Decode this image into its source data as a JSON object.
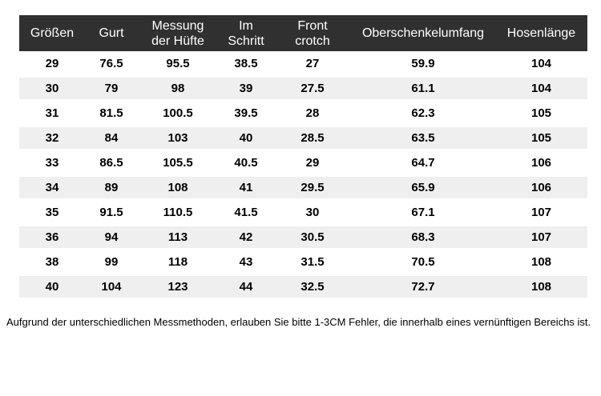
{
  "colors": {
    "header_bg": "#303030",
    "header_text": "#ffffff",
    "stripe": "#efefef",
    "body_text": "#000000"
  },
  "chart_data": {
    "type": "table",
    "title": "",
    "columns": [
      "Größen",
      "Gurt",
      "Messung der Hüfte",
      "Im Schritt",
      "Front crotch",
      "Oberschenkelumfang",
      "Hosenlänge"
    ],
    "rows": [
      [
        "29",
        "76.5",
        "95.5",
        "38.5",
        "27",
        "59.9",
        "104"
      ],
      [
        "30",
        "79",
        "98",
        "39",
        "27.5",
        "61.1",
        "104"
      ],
      [
        "31",
        "81.5",
        "100.5",
        "39.5",
        "28",
        "62.3",
        "105"
      ],
      [
        "32",
        "84",
        "103",
        "40",
        "28.5",
        "63.5",
        "105"
      ],
      [
        "33",
        "86.5",
        "105.5",
        "40.5",
        "29",
        "64.7",
        "106"
      ],
      [
        "34",
        "89",
        "108",
        "41",
        "29.5",
        "65.9",
        "106"
      ],
      [
        "35",
        "91.5",
        "110.5",
        "41.5",
        "30",
        "67.1",
        "107"
      ],
      [
        "36",
        "94",
        "113",
        "42",
        "30.5",
        "68.3",
        "107"
      ],
      [
        "38",
        "99",
        "118",
        "43",
        "31.5",
        "70.5",
        "108"
      ],
      [
        "40",
        "104",
        "123",
        "44",
        "32.5",
        "72.7",
        "108"
      ]
    ],
    "layout": {
      "zebra_striping": true,
      "header_style": "dark-bar",
      "alignment": "center"
    }
  },
  "footer": {
    "note": "Aufgrund der unterschiedlichen Messmethoden, erlauben Sie bitte 1-3CM Fehler, die innerhalb eines vernünftigen Bereichs ist."
  }
}
